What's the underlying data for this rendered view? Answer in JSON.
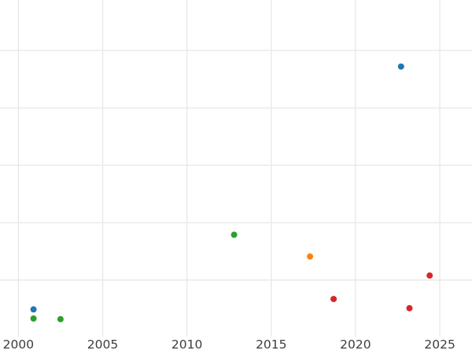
{
  "figure": {
    "type": "scatter-plot",
    "title": "",
    "colors": {
      "background": "#ffffff",
      "gridline": "#e9e9e9",
      "tick_label": "#3d3d3d",
      "blue": "#1f77b4",
      "orange": "#ff7f0e",
      "green": "#2ca02c",
      "red": "#d62728"
    }
  },
  "chart_data": {
    "type": "scatter",
    "title": "",
    "xlabel": "",
    "ylabel": "",
    "x_ticks": [
      2000,
      2005,
      2010,
      2015,
      2020,
      2025
    ],
    "x_tick_labels": [
      "2000",
      "2005",
      "2010",
      "2015",
      "2020",
      "2025"
    ],
    "xlim": [
      1998.91,
      2026.91
    ],
    "ylim": [
      0,
      5.88
    ],
    "y_gridlines": [
      1,
      2,
      3,
      4,
      5
    ],
    "y_axis": {
      "labels_visible": false,
      "units": "gridline-intervals-from-plot-bottom"
    },
    "grid": true,
    "legend": "none",
    "series": [
      {
        "name": "blue",
        "color": "#1f77b4",
        "points": [
          {
            "x": 2000.9,
            "y": 0.49
          },
          {
            "x": 2022.7,
            "y": 4.72
          }
        ]
      },
      {
        "name": "orange",
        "color": "#ff7f0e",
        "points": [
          {
            "x": 2017.3,
            "y": 1.41
          }
        ]
      },
      {
        "name": "green",
        "color": "#2ca02c",
        "points": [
          {
            "x": 2000.9,
            "y": 0.33
          },
          {
            "x": 2002.5,
            "y": 0.32
          },
          {
            "x": 2012.8,
            "y": 1.79
          }
        ]
      },
      {
        "name": "red",
        "color": "#d62728",
        "points": [
          {
            "x": 2018.7,
            "y": 0.67
          },
          {
            "x": 2023.2,
            "y": 0.51
          },
          {
            "x": 2024.4,
            "y": 1.08
          }
        ]
      }
    ]
  }
}
